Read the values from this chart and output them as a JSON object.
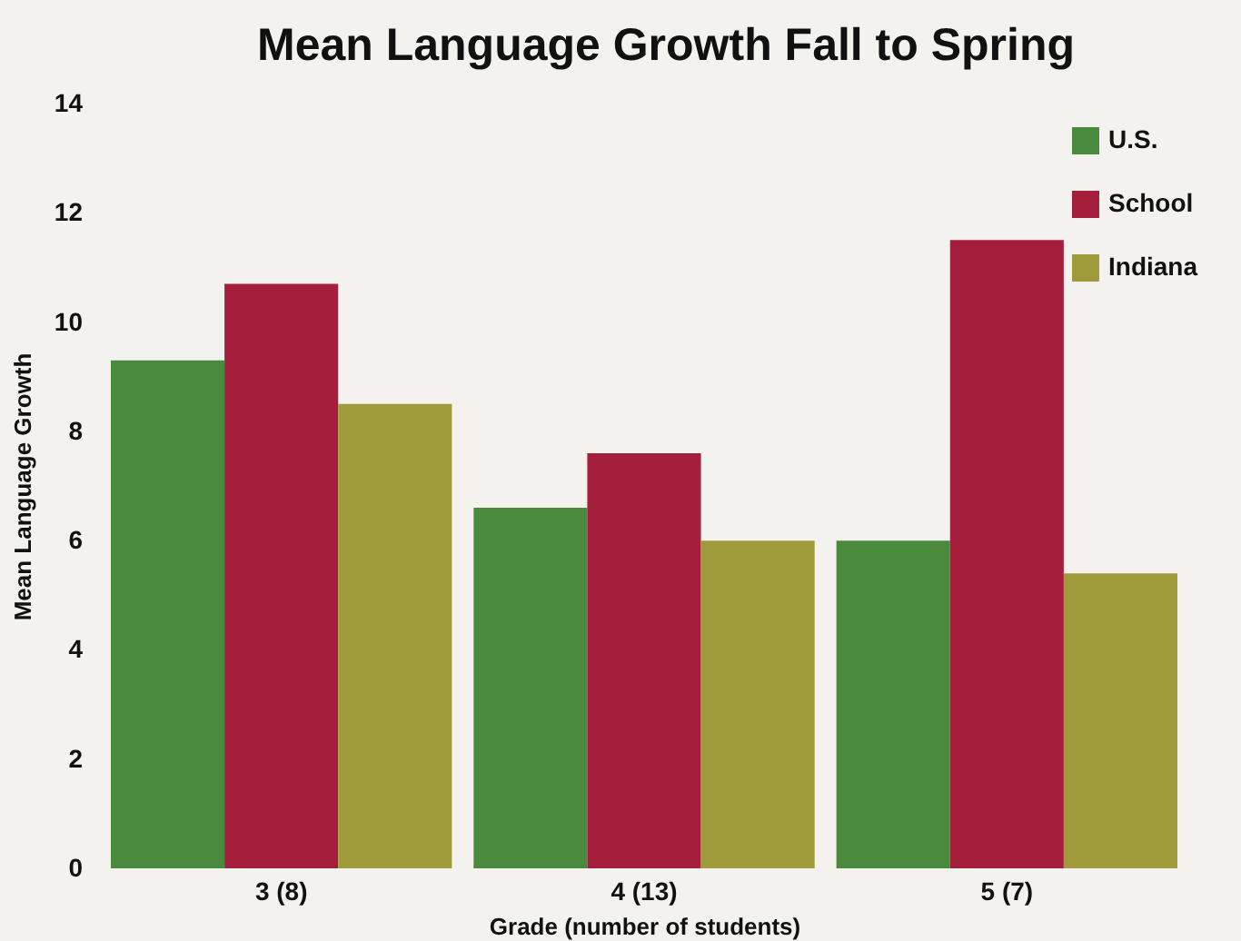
{
  "chart_data": {
    "type": "bar",
    "title": "Mean Language Growth Fall to Spring",
    "xlabel": "Grade (number of students)",
    "ylabel": "Mean Language Growth",
    "categories": [
      "3 (8)",
      "4 (13)",
      "5 (7)"
    ],
    "series": [
      {
        "name": "U.S.",
        "color": "#4a8a3c",
        "values": [
          9.3,
          6.6,
          6.0
        ]
      },
      {
        "name": "School",
        "color": "#a51e3c",
        "values": [
          10.7,
          7.6,
          11.5
        ]
      },
      {
        "name": "Indiana",
        "color": "#a09b3a",
        "values": [
          8.5,
          6.0,
          5.4
        ]
      }
    ],
    "ylim": [
      0,
      14
    ],
    "yticks": [
      0,
      2,
      4,
      6,
      8,
      10,
      12,
      14
    ],
    "legend": "top right"
  }
}
